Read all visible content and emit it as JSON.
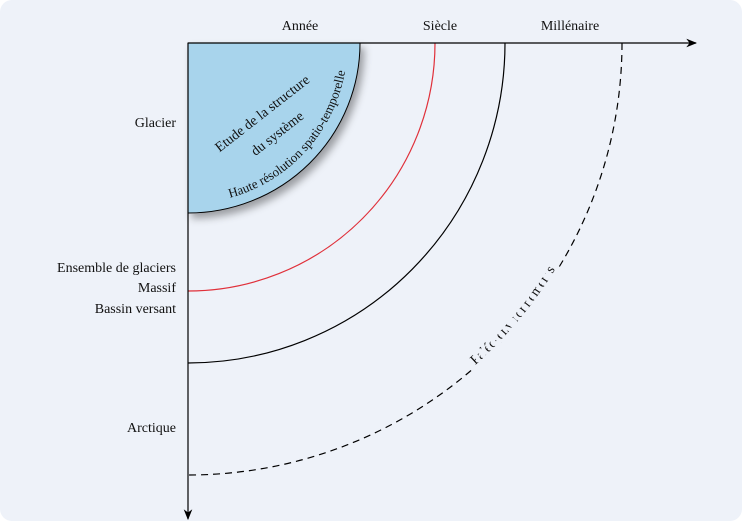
{
  "x_axis": {
    "labels": [
      "Année",
      "Siècle",
      "Millénaire"
    ]
  },
  "y_axis": {
    "labels": [
      "Glacier",
      "Ensemble de glaciers",
      "Massif",
      "Bassin versant",
      "Arctique"
    ]
  },
  "regions": {
    "system_study": {
      "lines": [
        "Etude de la structure",
        "du système"
      ],
      "arc_label": "Haute résolution spatio-temporelle"
    },
    "paleo": {
      "arc_label": "Paléo-environnements"
    }
  }
}
